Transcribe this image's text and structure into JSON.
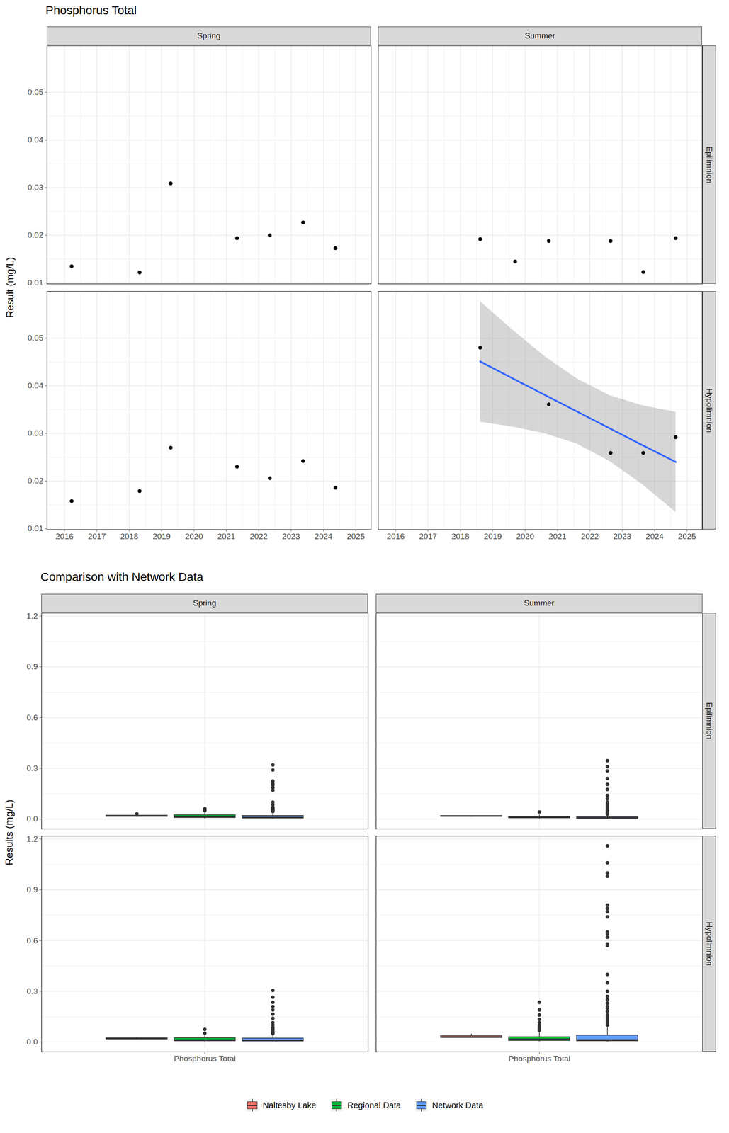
{
  "chart_data": [
    {
      "type": "scatter",
      "title": "Phosphorus Total",
      "y_label": "Result (mg/L)",
      "facet_columns": [
        "Spring",
        "Summer"
      ],
      "facet_rows": [
        "Epilimnion",
        "Hypolimnion"
      ],
      "xlim": [
        2015.46,
        2025.47
      ],
      "xticks": [
        2016,
        2017,
        2018,
        2019,
        2020,
        2021,
        2022,
        2023,
        2024,
        2025
      ],
      "ylim": [
        0.0098,
        0.0598
      ],
      "yticks": [
        0.01,
        0.02,
        0.03,
        0.04,
        0.05
      ],
      "grid": true,
      "color": "#000000",
      "panels": [
        {
          "column": "Spring",
          "row": "Epilimnion",
          "x": [
            2016.22,
            2018.32,
            2019.28,
            2021.33,
            2022.34,
            2023.37,
            2024.37
          ],
          "values": [
            0.0135,
            0.0122,
            0.0309,
            0.0194,
            0.02,
            0.0227,
            0.0173
          ]
        },
        {
          "column": "Summer",
          "row": "Epilimnion",
          "x": [
            2018.61,
            2019.69,
            2020.73,
            2022.64,
            2023.65,
            2024.65
          ],
          "values": [
            0.0192,
            0.0145,
            0.0188,
            0.0188,
            0.0123,
            0.0194
          ]
        },
        {
          "column": "Spring",
          "row": "Hypolimnion",
          "x": [
            2016.22,
            2018.32,
            2019.28,
            2021.33,
            2022.34,
            2023.37,
            2024.37
          ],
          "values": [
            0.0158,
            0.0179,
            0.027,
            0.023,
            0.0206,
            0.0242,
            0.0186
          ]
        },
        {
          "column": "Summer",
          "row": "Hypolimnion",
          "x": [
            2018.61,
            2020.73,
            2022.64,
            2023.65,
            2024.65
          ],
          "values": [
            0.048,
            0.0361,
            0.0259,
            0.0259,
            0.0292
          ]
        }
      ],
      "fit": {
        "column": "Summer",
        "row": "Hypolimnion",
        "type": "line",
        "color": "#3366FF",
        "x": [
          2018.61,
          2019.6,
          2020.6,
          2021.6,
          2022.6,
          2023.6,
          2024.65
        ],
        "values": [
          0.0451,
          0.0416,
          0.0381,
          0.0346,
          0.0311,
          0.0276,
          0.024
        ],
        "lower": [
          0.0324,
          0.0314,
          0.03,
          0.0278,
          0.0242,
          0.0194,
          0.0135
        ],
        "upper": [
          0.0577,
          0.0518,
          0.0462,
          0.0415,
          0.038,
          0.0359,
          0.0345
        ]
      }
    },
    {
      "type": "box",
      "title": "Comparison with Network Data",
      "y_label": "Results (mg/L)",
      "categories": [
        "Phosphorus Total"
      ],
      "facet_columns": [
        "Spring",
        "Summer"
      ],
      "facet_rows": [
        "Epilimnion",
        "Hypolimnion"
      ],
      "ylim": [
        -0.058,
        1.218
      ],
      "yticks": [
        {
          "value": 0,
          "label": "0.0"
        },
        0.3,
        0.6,
        0.9,
        1.2
      ],
      "grid": true,
      "legend": "bottom",
      "series": [
        {
          "name": "Naltesby Lake",
          "color": "#F8766D"
        },
        {
          "name": "Regional Data",
          "color": "#00BA38"
        },
        {
          "name": "Network Data",
          "color": "#619CFF"
        }
      ],
      "panels": [
        {
          "column": "Spring",
          "row": "Epilimnion",
          "boxes": [
            {
              "series": "Naltesby Lake",
              "min": 0.0122,
              "q1": 0.0154,
              "median": 0.0194,
              "q3": 0.0214,
              "max": 0.0227,
              "outliers": [
                0.0309
              ]
            },
            {
              "series": "Regional Data",
              "min": 0.002,
              "q1": 0.008,
              "median": 0.014,
              "q3": 0.024,
              "max": 0.045,
              "outliers": [
                0.05,
                0.058,
                0.062
              ]
            },
            {
              "series": "Network Data",
              "min": 0.001,
              "q1": 0.005,
              "median": 0.01,
              "q3": 0.02,
              "max": 0.042,
              "outliers": [
                0.32,
                0.29,
                0.225,
                0.21,
                0.2,
                0.185,
                0.17,
                0.1,
                0.085,
                0.07,
                0.065,
                0.06,
                0.055,
                0.05,
                0.045
              ]
            }
          ]
        },
        {
          "column": "Summer",
          "row": "Epilimnion",
          "boxes": [
            {
              "series": "Naltesby Lake",
              "min": 0.0123,
              "q1": 0.0156,
              "median": 0.0188,
              "q3": 0.0191,
              "max": 0.0194,
              "outliers": []
            },
            {
              "series": "Regional Data",
              "min": 0.002,
              "q1": 0.006,
              "median": 0.01,
              "q3": 0.014,
              "max": 0.026,
              "outliers": [
                0.042
              ]
            },
            {
              "series": "Network Data",
              "min": 0.001,
              "q1": 0.004,
              "median": 0.007,
              "q3": 0.012,
              "max": 0.024,
              "outliers": [
                0.345,
                0.31,
                0.285,
                0.24,
                0.205,
                0.175,
                0.14,
                0.12,
                0.1,
                0.09,
                0.08,
                0.07,
                0.06,
                0.05,
                0.04,
                0.035,
                0.03
              ]
            }
          ]
        },
        {
          "column": "Spring",
          "row": "Hypolimnion",
          "boxes": [
            {
              "series": "Naltesby Lake",
              "min": 0.0158,
              "q1": 0.0183,
              "median": 0.0206,
              "q3": 0.0236,
              "max": 0.027,
              "outliers": []
            },
            {
              "series": "Regional Data",
              "min": 0.002,
              "q1": 0.006,
              "median": 0.012,
              "q3": 0.024,
              "max": 0.048,
              "outliers": [
                0.075,
                0.052
              ]
            },
            {
              "series": "Network Data",
              "min": 0.001,
              "q1": 0.005,
              "median": 0.01,
              "q3": 0.022,
              "max": 0.045,
              "outliers": [
                0.305,
                0.265,
                0.235,
                0.21,
                0.19,
                0.165,
                0.14,
                0.115,
                0.1,
                0.085,
                0.075,
                0.065,
                0.055,
                0.05
              ]
            }
          ]
        },
        {
          "column": "Summer",
          "row": "Hypolimnion",
          "boxes": [
            {
              "series": "Naltesby Lake",
              "min": 0.0259,
              "q1": 0.0259,
              "median": 0.0292,
              "q3": 0.0361,
              "max": 0.048,
              "outliers": []
            },
            {
              "series": "Regional Data",
              "min": 0.002,
              "q1": 0.008,
              "median": 0.016,
              "q3": 0.03,
              "max": 0.062,
              "outliers": [
                0.235,
                0.19,
                0.16,
                0.135,
                0.115,
                0.1,
                0.09,
                0.08,
                0.07
              ]
            },
            {
              "series": "Network Data",
              "min": 0.001,
              "q1": 0.006,
              "median": 0.012,
              "q3": 0.04,
              "max": 0.09,
              "outliers": [
                1.16,
                1.06,
                1.0,
                0.98,
                0.81,
                0.79,
                0.77,
                0.74,
                0.65,
                0.64,
                0.62,
                0.58,
                0.57,
                0.4,
                0.35,
                0.3,
                0.27,
                0.25,
                0.23,
                0.21,
                0.2,
                0.18,
                0.16,
                0.15,
                0.14,
                0.13,
                0.12,
                0.11,
                0.1
              ]
            }
          ]
        }
      ]
    }
  ]
}
